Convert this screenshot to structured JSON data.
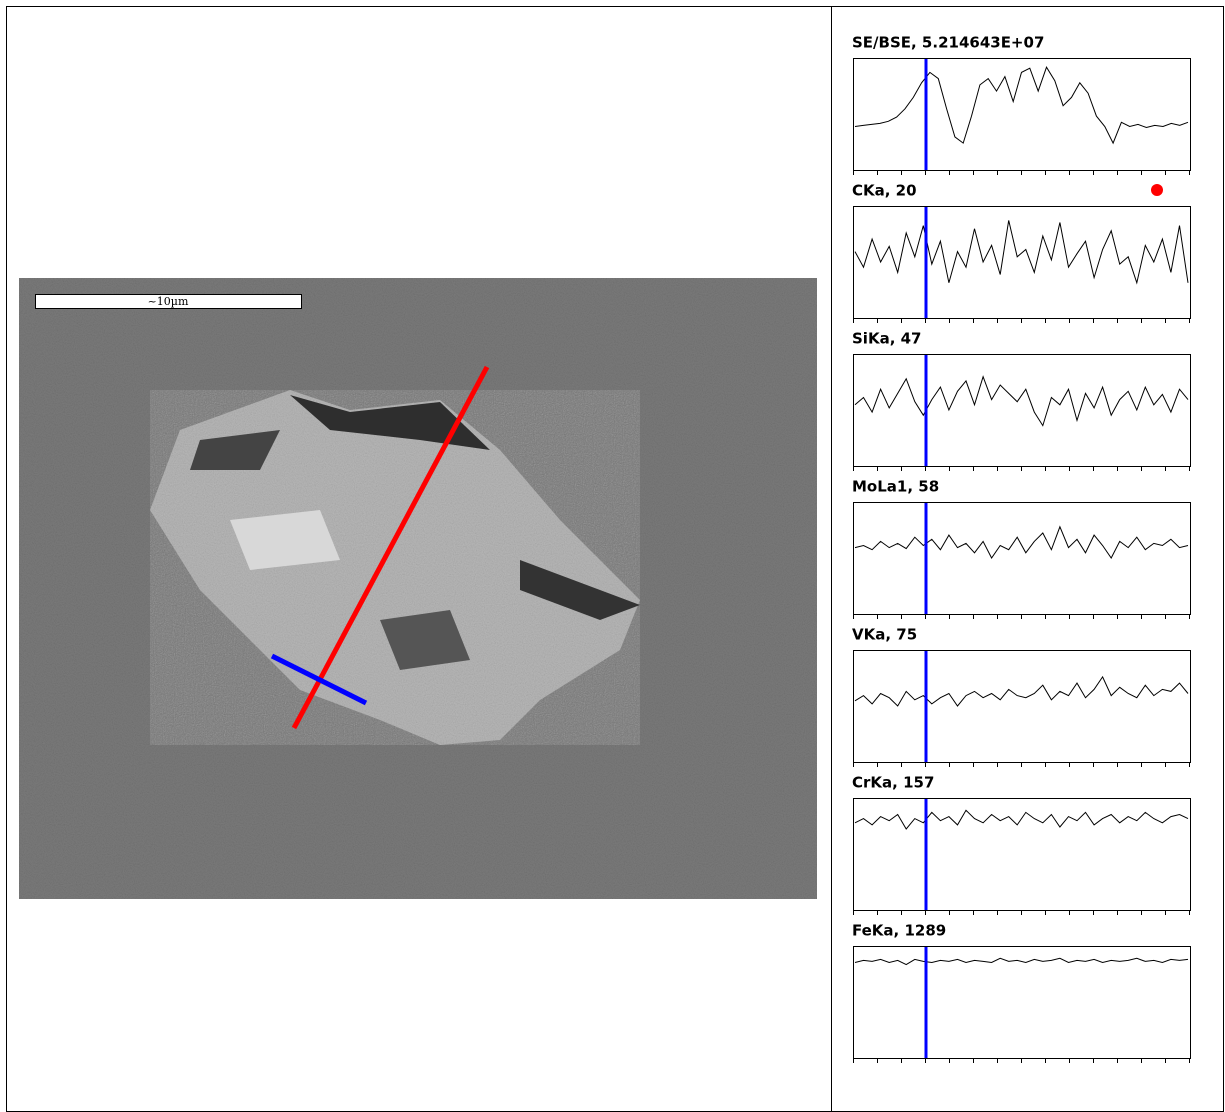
{
  "image": {
    "scale_bar": "~10µm"
  },
  "panels": [
    {
      "label": "SE/BSE, 5.214643E+07",
      "trace": [
        38,
        39,
        40,
        41,
        43,
        47,
        55,
        66,
        80,
        90,
        84,
        55,
        28,
        22,
        48,
        78,
        84,
        72,
        86,
        62,
        90,
        94,
        72,
        95,
        82,
        58,
        66,
        80,
        70,
        48,
        38,
        22,
        42,
        38,
        40,
        37,
        39,
        38,
        41,
        39,
        42
      ]
    },
    {
      "label": "CKa, 20",
      "trace": [
        60,
        45,
        72,
        50,
        65,
        40,
        78,
        55,
        85,
        48,
        70,
        30,
        60,
        45,
        82,
        50,
        66,
        38,
        90,
        55,
        62,
        40,
        75,
        52,
        88,
        45,
        58,
        70,
        35,
        62,
        80,
        48,
        55,
        30,
        66,
        50,
        72,
        40,
        85,
        30
      ]
    },
    {
      "label": "SiKa, 47",
      "trace": [
        55,
        62,
        48,
        70,
        52,
        66,
        80,
        58,
        45,
        60,
        72,
        50,
        68,
        78,
        55,
        82,
        60,
        74,
        66,
        58,
        70,
        48,
        35,
        62,
        55,
        70,
        40,
        66,
        52,
        72,
        45,
        60,
        68,
        50,
        72,
        55,
        65,
        48,
        70,
        60
      ]
    },
    {
      "label": "MoLa1, 58",
      "trace": [
        60,
        62,
        58,
        66,
        60,
        64,
        59,
        70,
        62,
        68,
        58,
        72,
        60,
        64,
        55,
        66,
        50,
        62,
        58,
        70,
        55,
        66,
        74,
        58,
        80,
        60,
        68,
        55,
        72,
        62,
        50,
        66,
        60,
        70,
        58,
        64,
        62,
        68,
        60,
        62
      ]
    },
    {
      "label": "VKa, 75",
      "trace": [
        55,
        60,
        52,
        62,
        58,
        50,
        64,
        56,
        60,
        52,
        58,
        62,
        50,
        60,
        64,
        58,
        62,
        56,
        66,
        60,
        58,
        62,
        70,
        56,
        64,
        60,
        72,
        58,
        66,
        78,
        60,
        68,
        62,
        58,
        70,
        60,
        66,
        64,
        72,
        62
      ]
    },
    {
      "label": "CrKa, 157",
      "trace": [
        80,
        84,
        78,
        86,
        82,
        88,
        74,
        84,
        80,
        90,
        82,
        86,
        78,
        92,
        84,
        80,
        88,
        82,
        86,
        78,
        90,
        84,
        80,
        88,
        76,
        86,
        82,
        90,
        78,
        84,
        88,
        80,
        86,
        82,
        90,
        84,
        80,
        86,
        88,
        84
      ]
    },
    {
      "label": "FeKa, 1289",
      "trace": [
        88,
        90,
        89,
        91,
        88,
        90,
        86,
        91,
        89,
        88,
        90,
        89,
        91,
        88,
        90,
        89,
        88,
        92,
        89,
        90,
        88,
        91,
        89,
        90,
        92,
        88,
        90,
        89,
        91,
        88,
        90,
        89,
        90,
        92,
        89,
        90,
        88,
        91,
        90,
        91
      ]
    }
  ]
}
